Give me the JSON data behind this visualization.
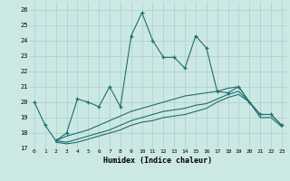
{
  "xlabel": "Humidex (Indice chaleur)",
  "background_color": "#cce8e5",
  "grid_color": "#aacfcc",
  "line_color": "#1e6e6e",
  "xlim": [
    -0.5,
    23.5
  ],
  "ylim": [
    17,
    26.5
  ],
  "yticks": [
    17,
    18,
    19,
    20,
    21,
    22,
    23,
    24,
    25,
    26
  ],
  "xticks": [
    0,
    1,
    2,
    3,
    4,
    5,
    6,
    7,
    8,
    9,
    10,
    11,
    12,
    13,
    14,
    15,
    16,
    17,
    18,
    19,
    20,
    21,
    22,
    23
  ],
  "series1_x": [
    0,
    1,
    2,
    3,
    4,
    5,
    6,
    7,
    8,
    9,
    10,
    11,
    12,
    13,
    14,
    15,
    16,
    17,
    18,
    19,
    20,
    21,
    22,
    23
  ],
  "series1_y": [
    20.0,
    18.5,
    17.5,
    18.0,
    20.2,
    20.0,
    19.7,
    21.0,
    19.7,
    24.3,
    25.8,
    24.0,
    22.9,
    22.9,
    22.2,
    24.3,
    23.5,
    20.7,
    20.6,
    21.0,
    20.0,
    19.2,
    19.2,
    18.5
  ],
  "series2_x": [
    2,
    3,
    4,
    5,
    6,
    7,
    8,
    9,
    10,
    11,
    12,
    13,
    14,
    15,
    16,
    17,
    18,
    19,
    20
  ],
  "series2_y": [
    17.5,
    17.8,
    18.0,
    18.2,
    18.5,
    18.8,
    19.1,
    19.4,
    19.6,
    19.8,
    20.0,
    20.2,
    20.4,
    20.5,
    20.6,
    20.7,
    20.9,
    21.0,
    20.0
  ],
  "series3_x": [
    2,
    3,
    4,
    5,
    6,
    7,
    8,
    9,
    10,
    11,
    12,
    13,
    14,
    15,
    16,
    17,
    18,
    19,
    20,
    21,
    22,
    23
  ],
  "series3_y": [
    17.5,
    17.4,
    17.6,
    17.8,
    18.0,
    18.2,
    18.5,
    18.8,
    19.0,
    19.2,
    19.4,
    19.5,
    19.6,
    19.8,
    19.9,
    20.2,
    20.5,
    20.7,
    20.0,
    19.2,
    19.2,
    18.5
  ],
  "series4_x": [
    2,
    3,
    4,
    5,
    6,
    7,
    8,
    9,
    10,
    11,
    12,
    13,
    14,
    15,
    16,
    17,
    18,
    19,
    20,
    21,
    22,
    23
  ],
  "series4_y": [
    17.4,
    17.3,
    17.4,
    17.6,
    17.8,
    18.0,
    18.2,
    18.5,
    18.7,
    18.8,
    19.0,
    19.1,
    19.2,
    19.4,
    19.6,
    20.0,
    20.3,
    20.5,
    20.0,
    19.0,
    19.0,
    18.4
  ]
}
